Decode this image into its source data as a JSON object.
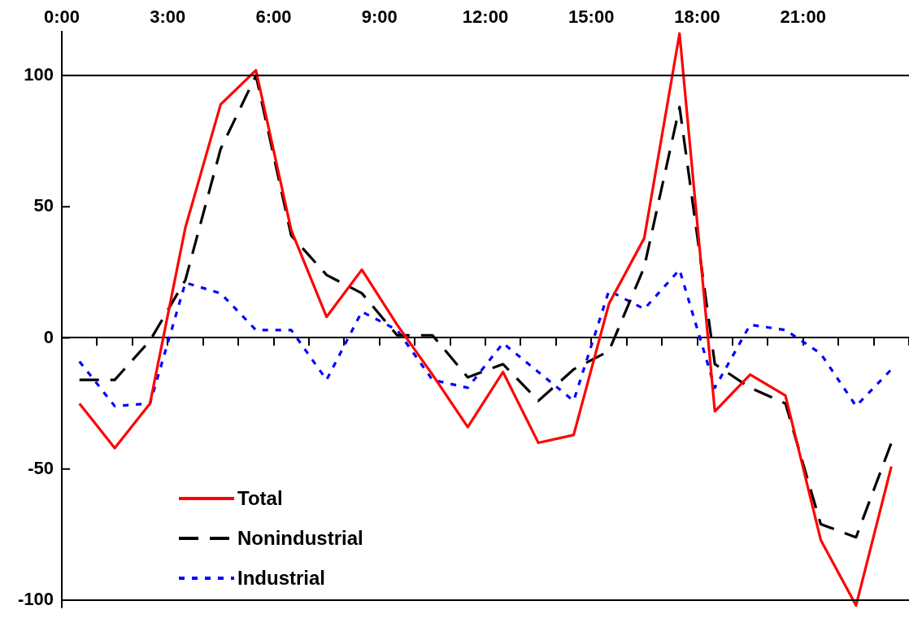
{
  "chart_data": {
    "type": "line",
    "categories": [
      null,
      null,
      null,
      null,
      null,
      null,
      null,
      null,
      null,
      null,
      null,
      null,
      null,
      null,
      null,
      null,
      null,
      null,
      null,
      null,
      null,
      null,
      null,
      null
    ],
    "x2lim": [
      0,
      24
    ],
    "x2ticks": [
      {
        "value": 0,
        "label": "0:00"
      },
      {
        "value": 3,
        "label": "3:00"
      },
      {
        "value": 6,
        "label": "6:00"
      },
      {
        "value": 9,
        "label": "9:00"
      },
      {
        "value": 12,
        "label": "12:00"
      },
      {
        "value": 15,
        "label": "15:00"
      },
      {
        "value": 18,
        "label": "18:00"
      },
      {
        "value": 21,
        "label": "21:00"
      }
    ],
    "ylim": [
      -103,
      117
    ],
    "yticks": [
      -100,
      -50,
      0,
      50,
      100
    ],
    "legend": "bottom left",
    "grid": true,
    "series": [
      {
        "name": "Total",
        "color": "#ff0000",
        "line_style": "solid",
        "values": [
          -25,
          -42,
          -25,
          42,
          89,
          102,
          41,
          8,
          26,
          5,
          -14,
          -34,
          -13,
          -40,
          -37,
          13,
          38,
          116,
          -28,
          -14,
          -22,
          -77,
          -102,
          -49
        ]
      },
      {
        "name": "Nonindustrial",
        "color": "#000000",
        "line_style": "dashed",
        "values": [
          -16,
          -16,
          -1,
          22,
          72,
          100,
          39,
          24,
          17,
          1,
          1,
          -15,
          -10,
          -24,
          -12,
          -5,
          27,
          88,
          -10,
          -19,
          -25,
          -71,
          -76,
          -40
        ]
      },
      {
        "name": "Industrial",
        "color": "#0000ff",
        "line_style": "dotted",
        "values": [
          -9,
          -26,
          -25,
          21,
          17,
          3,
          3,
          -16,
          10,
          3,
          -16,
          -19,
          -2,
          -13,
          -24,
          18,
          11,
          26,
          -19,
          5,
          3,
          -6,
          -26,
          -12
        ]
      }
    ]
  }
}
